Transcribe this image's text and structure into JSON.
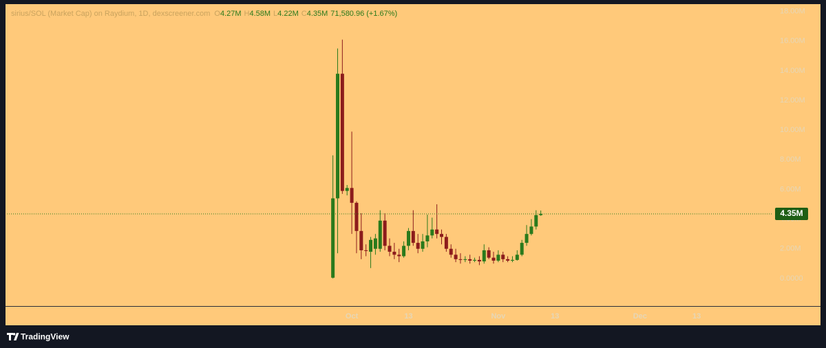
{
  "chart_data": {
    "type": "candlestick",
    "title": "sirius/SOL (Market Cap) on Raydium, 1D, dexscreener.com",
    "legend_values": [
      {
        "key": "O",
        "label": "4.27M"
      },
      {
        "key": "H",
        "label": "4.58M"
      },
      {
        "key": "L",
        "label": "4.22M"
      },
      {
        "key": "C",
        "label": "4.35M"
      }
    ],
    "change": "71,580.96 (+1.67%)",
    "x": [
      "Sep 27",
      "Sep 28",
      "Sep 29",
      "Sep 30",
      "Oct 1",
      "Oct 2",
      "Oct 3",
      "Oct 4",
      "Oct 5",
      "Oct 6",
      "Oct 7",
      "Oct 8",
      "Oct 9",
      "Oct 10",
      "Oct 11",
      "Oct 12",
      "Oct 13",
      "Oct 14",
      "Oct 15",
      "Oct 16",
      "Oct 17",
      "Oct 18",
      "Oct 19",
      "Oct 20",
      "Oct 21",
      "Oct 22",
      "Oct 23",
      "Oct 24",
      "Oct 25",
      "Oct 26",
      "Oct 27",
      "Oct 28",
      "Oct 29",
      "Oct 30",
      "Oct 31",
      "Nov 1",
      "Nov 2",
      "Nov 3",
      "Nov 4",
      "Nov 5",
      "Nov 6",
      "Nov 7",
      "Nov 8",
      "Nov 9",
      "Nov 10"
    ],
    "open": [
      50000,
      5400000,
      13800000,
      5900000,
      6100000,
      5100000,
      3200000,
      1900000,
      1800000,
      2000000,
      2000000,
      3900000,
      2200000,
      1800000,
      1600000,
      1500000,
      2200000,
      3200000,
      2400000,
      2000000,
      2500000,
      2900000,
      3300000,
      3000000,
      2800000,
      2000000,
      1600000,
      1300000,
      1250000,
      1300000,
      1200000,
      1250000,
      1150000,
      1900000,
      1400000,
      1200000,
      1600000,
      1300000,
      1200000,
      1250000,
      1600000,
      2400000,
      3000000,
      3500000,
      4270000
    ],
    "high": [
      8300000,
      15500000,
      16100000,
      6300000,
      9900000,
      5200000,
      4400000,
      2300000,
      2800000,
      3000000,
      4600000,
      4400000,
      2700000,
      2400000,
      2000000,
      2500000,
      3400000,
      4600000,
      3000000,
      3000000,
      4300000,
      4100000,
      5000000,
      3300000,
      3000000,
      2300000,
      2000000,
      1700000,
      1500000,
      1600000,
      1400000,
      1500000,
      2300000,
      2100000,
      1800000,
      1900000,
      1800000,
      1500000,
      1500000,
      1900000,
      2600000,
      3600000,
      4000000,
      4600000,
      4580000
    ],
    "low": [
      0,
      1700000,
      5700000,
      5600000,
      3000000,
      1700000,
      1300000,
      1500000,
      700000,
      1600000,
      1800000,
      1900000,
      1500000,
      1300000,
      1100000,
      1400000,
      1900000,
      2200000,
      1700000,
      1800000,
      2100000,
      2700000,
      2700000,
      2300000,
      1800000,
      1400000,
      1100000,
      1000000,
      1100000,
      1000000,
      1100000,
      900000,
      1000000,
      1300000,
      1000000,
      1100000,
      1100000,
      1100000,
      1100000,
      1200000,
      1500000,
      2200000,
      2900000,
      3300000,
      4220000
    ],
    "close": [
      5400000,
      13800000,
      5900000,
      6100000,
      5100000,
      3200000,
      1900000,
      1850000,
      2600000,
      2700000,
      3900000,
      2200000,
      1800000,
      1600000,
      1500000,
      2200000,
      3200000,
      2400000,
      2000000,
      2500000,
      2900000,
      3300000,
      3000000,
      2800000,
      2000000,
      1600000,
      1300000,
      1250000,
      1300000,
      1200000,
      1250000,
      1150000,
      1900000,
      1400000,
      1200000,
      1600000,
      1300000,
      1200000,
      1250000,
      1600000,
      2400000,
      3000000,
      3500000,
      4270000,
      4350000
    ],
    "up_color": "#2a7a1c",
    "down_color": "#8c1c1c",
    "ylim": [
      -1860000,
      18400000
    ],
    "yticks": [
      {
        "value": 0,
        "label": "0.0000"
      },
      {
        "value": 2000000,
        "label": "2.00M"
      },
      {
        "value": 4000000,
        "label": "4.00M"
      },
      {
        "value": 6000000,
        "label": "6.00M"
      },
      {
        "value": 8000000,
        "label": "8.00M"
      },
      {
        "value": 10000000,
        "label": "10.00M"
      },
      {
        "value": 12000000,
        "label": "12.00M"
      },
      {
        "value": 14000000,
        "label": "14.00M"
      },
      {
        "value": 16000000,
        "label": "16.00M"
      },
      {
        "value": 18000000,
        "label": "18.00M"
      }
    ],
    "xlim": [
      "Jul 20",
      "Dec 29"
    ],
    "xticks": [
      {
        "value": "Oct 1",
        "label": "Oct"
      },
      {
        "value": "Oct 13",
        "label": "13"
      },
      {
        "value": "Nov 1",
        "label": "Nov"
      },
      {
        "value": "Nov 13",
        "label": "13"
      },
      {
        "value": "Dec 1",
        "label": "Dec"
      },
      {
        "value": "Dec 13",
        "label": "13"
      }
    ],
    "last_price": {
      "value": 4350000,
      "label": "4.35M"
    },
    "grid": false
  },
  "footer": {
    "brand": "TradingView"
  }
}
